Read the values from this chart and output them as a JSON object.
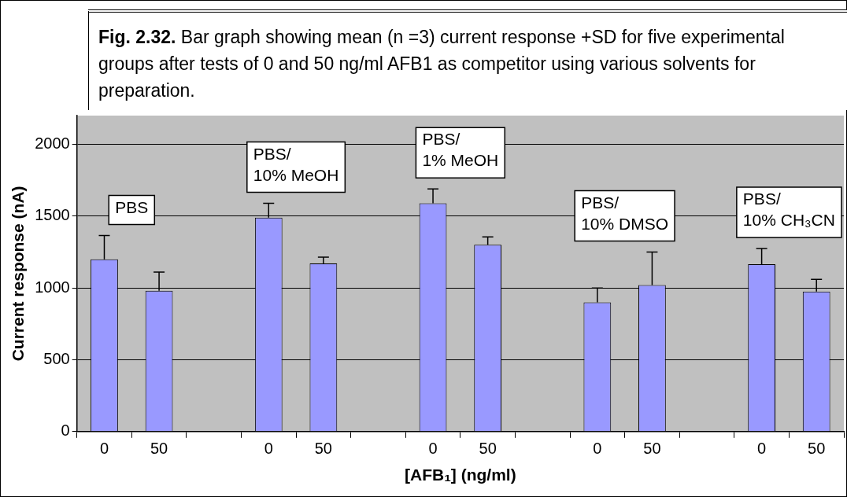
{
  "chart_data": {
    "type": "bar",
    "title": "Fig. 2.32. Bar graph showing mean (n =3) current response +SD for five experimental groups after tests of 0 and 50 ng/ml AFB1 as competitor using various solvents for preparation.",
    "xlabel": "[AFB₁] (ng/ml)",
    "ylabel": "Current response (nA)",
    "categories": [
      "0",
      "50",
      null,
      "0",
      "50",
      null,
      "0",
      "50",
      null,
      "0",
      "50",
      null,
      "0",
      "50"
    ],
    "values": [
      1200,
      980,
      null,
      1490,
      1170,
      null,
      1590,
      1300,
      null,
      900,
      1020,
      null,
      1165,
      975
    ],
    "errors": [
      [
        1200,
        1365
      ],
      [
        980,
        1110
      ],
      null,
      [
        1490,
        1590
      ],
      [
        1170,
        1215
      ],
      null,
      [
        1590,
        1690
      ],
      [
        1300,
        1355
      ],
      null,
      [
        900,
        1000
      ],
      [
        1020,
        1250
      ],
      null,
      [
        1165,
        1275
      ],
      [
        975,
        1060
      ]
    ],
    "color": "#9999ff",
    "ylim": [
      0,
      2200
    ],
    "yticks": [
      0,
      500,
      1000,
      1500,
      2000
    ],
    "grid": "y",
    "legend": false,
    "annotations": [
      "PBS",
      "PBS/\n10% MeOH",
      "PBS/\n1% MeOH",
      "PBS/\n10% DMSO",
      "PBS/\n10% CH₃CN"
    ]
  }
}
